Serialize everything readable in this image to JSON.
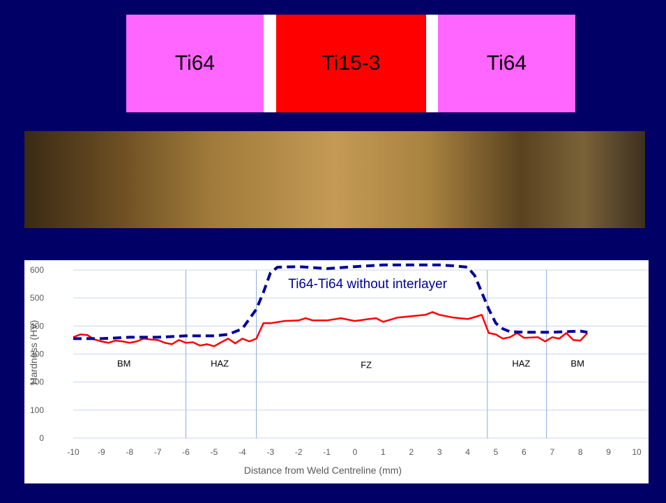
{
  "header": {
    "materials": [
      "Ti64",
      "Ti15-3",
      "Ti64"
    ]
  },
  "chart_data": {
    "type": "line",
    "xlabel": "Distance from Weld Centreline (mm)",
    "ylabel": "Hardness (HV)",
    "xlim": [
      -10,
      10
    ],
    "xticks": [
      -10,
      -9,
      -8,
      -7,
      -6,
      -5,
      -4,
      -3,
      -2,
      -1,
      0,
      1,
      2,
      3,
      4,
      5,
      6,
      7,
      8,
      9,
      10
    ],
    "ylim": [
      0,
      600
    ],
    "yticks": [
      0,
      100,
      200,
      300,
      400,
      500,
      600
    ],
    "grid": true,
    "zone_boundaries": [
      -6,
      -3.5,
      4.7,
      6.8
    ],
    "annotations": [
      {
        "text": "BM",
        "x": -8.2,
        "y": 255
      },
      {
        "text": "HAZ",
        "x": -4.8,
        "y": 255
      },
      {
        "text": "FZ",
        "x": 0.4,
        "y": 250
      },
      {
        "text": "HAZ",
        "x": 5.9,
        "y": 255
      },
      {
        "text": "BM",
        "x": 7.9,
        "y": 255
      }
    ],
    "series": [
      {
        "color": "#ff0000",
        "dashed": false,
        "x": [
          -10,
          -9.75,
          -9.5,
          -9.25,
          -9,
          -8.75,
          -8.5,
          -8.25,
          -8,
          -7.75,
          -7.5,
          -7.25,
          -7,
          -6.75,
          -6.5,
          -6.25,
          -6,
          -5.75,
          -5.5,
          -5.25,
          -5,
          -4.75,
          -4.5,
          -4.25,
          -4,
          -3.75,
          -3.5,
          -3.25,
          -3,
          -2.5,
          -2,
          -1.75,
          -1.5,
          -1,
          -0.5,
          0,
          0.5,
          0.75,
          1,
          1.5,
          2,
          2.5,
          2.75,
          3,
          3.5,
          4,
          4.25,
          4.5,
          4.75,
          5,
          5.25,
          5.5,
          5.75,
          6,
          6.5,
          6.75,
          7,
          7.25,
          7.5,
          7.75,
          8,
          8.25
        ],
        "values": [
          360,
          370,
          368,
          352,
          345,
          340,
          348,
          345,
          340,
          345,
          355,
          352,
          350,
          340,
          335,
          350,
          340,
          342,
          330,
          335,
          328,
          342,
          355,
          338,
          355,
          345,
          355,
          410,
          410,
          418,
          420,
          428,
          420,
          420,
          428,
          418,
          425,
          428,
          415,
          430,
          435,
          440,
          450,
          440,
          430,
          425,
          432,
          440,
          375,
          370,
          355,
          360,
          375,
          358,
          360,
          345,
          360,
          355,
          375,
          350,
          348,
          375
        ]
      },
      {
        "name": "Ti64-Ti64 without interlayer",
        "color": "#000099",
        "dashed": true,
        "label_x": 0.45,
        "label_y": 535,
        "x": [
          -10,
          -9,
          -8,
          -7,
          -6,
          -5,
          -4.5,
          -4,
          -3.5,
          -3.25,
          -3,
          -2.75,
          -2,
          -1,
          0,
          1,
          2,
          3,
          3.5,
          4,
          4.25,
          4.5,
          4.75,
          5,
          5.25,
          5.5,
          6,
          7,
          7.5,
          8,
          8.25
        ],
        "values": [
          355,
          355,
          360,
          360,
          365,
          365,
          370,
          390,
          460,
          520,
          590,
          610,
          612,
          605,
          612,
          618,
          618,
          618,
          615,
          610,
          580,
          520,
          460,
          410,
          390,
          380,
          378,
          378,
          380,
          382,
          378
        ]
      }
    ]
  }
}
